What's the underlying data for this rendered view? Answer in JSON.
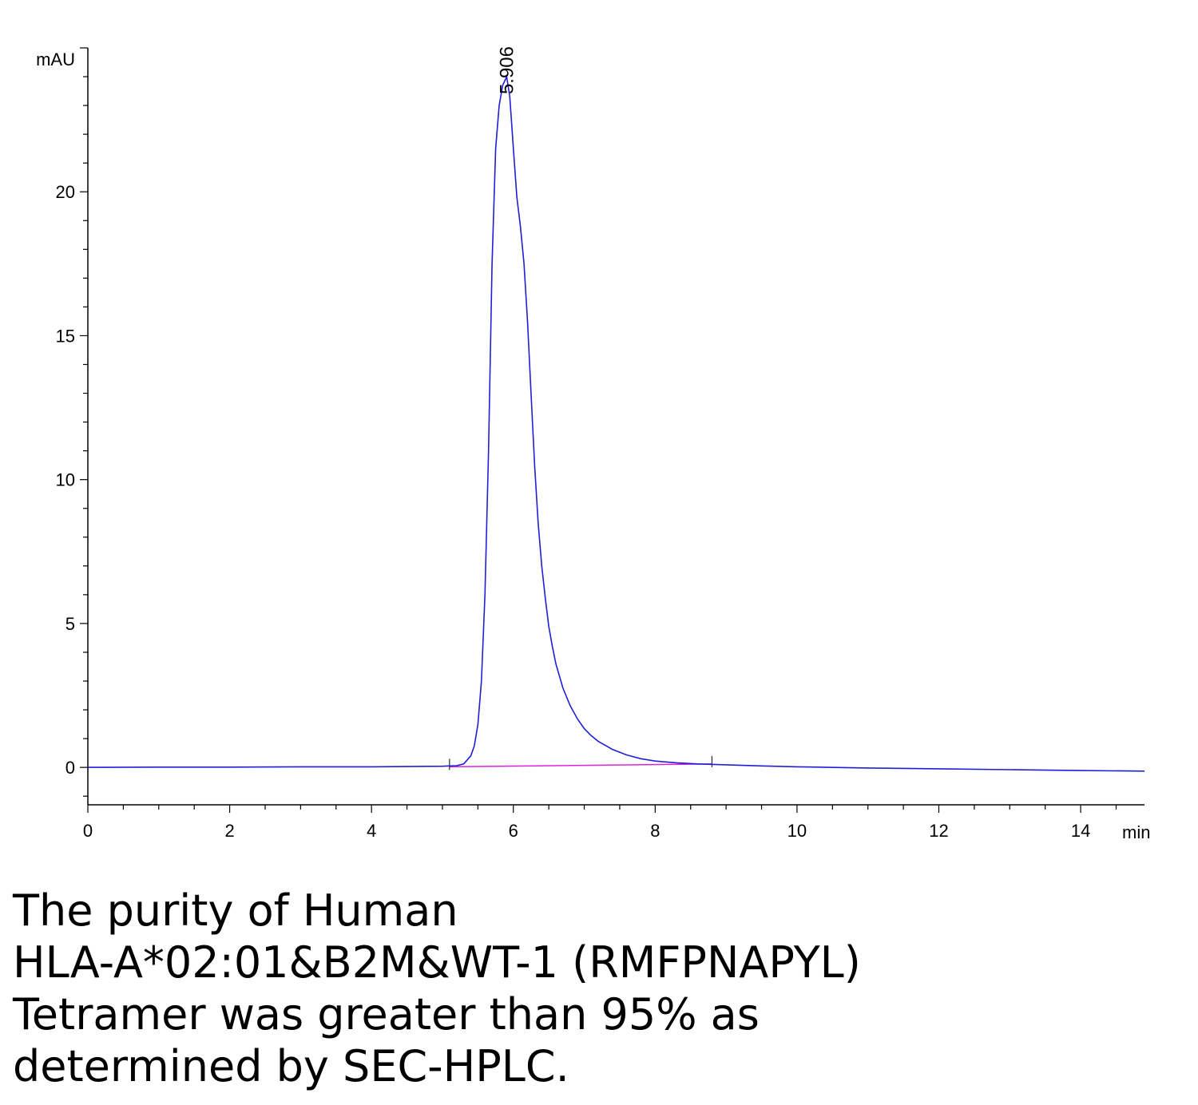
{
  "chart_data": {
    "type": "line",
    "xlabel": "min",
    "ylabel": "mAU",
    "xlim": [
      0,
      14.9
    ],
    "ylim": [
      -1.3,
      25
    ],
    "x_ticks": [
      "0",
      "2",
      "4",
      "6",
      "8",
      "10",
      "12",
      "14"
    ],
    "y_ticks": [
      "0",
      "5",
      "10",
      "15",
      "20"
    ],
    "peak_annotation": {
      "x": 5.906,
      "y": 24,
      "label": "5.906"
    },
    "baseline": {
      "x": [
        5.1,
        8.8
      ],
      "y": [
        0.02,
        0.12
      ]
    },
    "series": [
      {
        "color": "#1f1fd8",
        "x": [
          0,
          1,
          2,
          3,
          4,
          4.5,
          5.0,
          5.1,
          5.2,
          5.3,
          5.4,
          5.45,
          5.5,
          5.55,
          5.6,
          5.65,
          5.7,
          5.75,
          5.8,
          5.85,
          5.906,
          5.95,
          6.0,
          6.05,
          6.1,
          6.15,
          6.2,
          6.25,
          6.3,
          6.35,
          6.4,
          6.45,
          6.5,
          6.55,
          6.6,
          6.7,
          6.8,
          6.9,
          7.0,
          7.1,
          7.2,
          7.4,
          7.6,
          7.8,
          8.0,
          8.3,
          8.6,
          9.0,
          9.5,
          10.0,
          11.0,
          12.0,
          13.0,
          14.0,
          14.9
        ],
        "y": [
          0.0,
          0.01,
          0.01,
          0.02,
          0.02,
          0.03,
          0.04,
          0.05,
          0.06,
          0.12,
          0.4,
          0.75,
          1.5,
          3.0,
          6.0,
          11.0,
          17.5,
          21.5,
          23.0,
          23.7,
          24.0,
          23.3,
          21.5,
          19.8,
          18.8,
          17.5,
          15.5,
          13.0,
          10.5,
          8.5,
          7.0,
          5.9,
          4.9,
          4.2,
          3.6,
          2.75,
          2.15,
          1.7,
          1.35,
          1.1,
          0.9,
          0.62,
          0.43,
          0.3,
          0.22,
          0.16,
          0.12,
          0.09,
          0.05,
          0.02,
          -0.02,
          -0.05,
          -0.08,
          -0.11,
          -0.13
        ]
      }
    ]
  },
  "caption": {
    "line1": "The purity of Human",
    "line2": "HLA-A*02:01&B2M&WT-1 (RMFPNAPYL)",
    "line3": "Tetramer was greater than 95% as",
    "line4": "determined by SEC-HPLC."
  }
}
